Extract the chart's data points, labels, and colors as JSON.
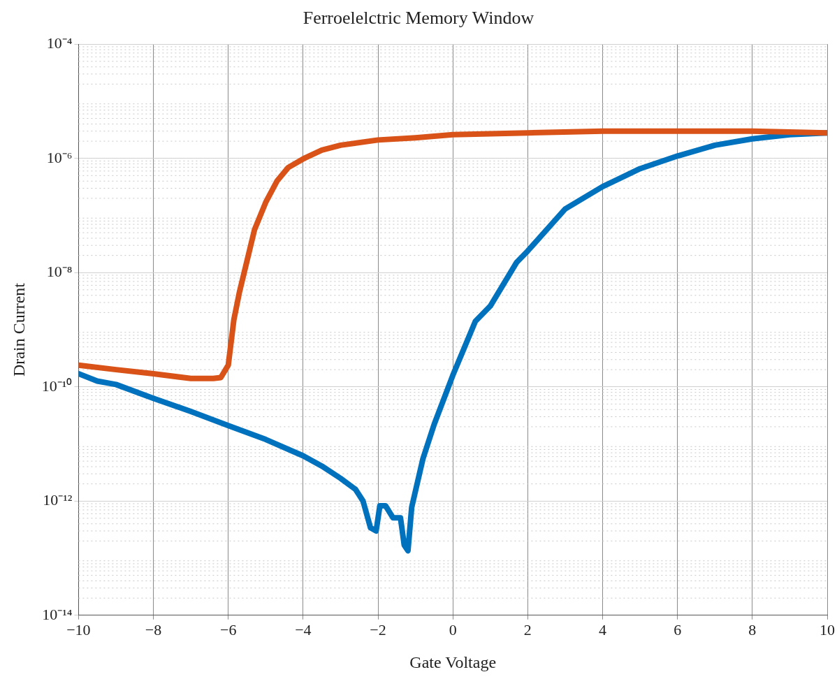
{
  "chart_data": {
    "type": "line",
    "title": "Ferroelelctric Memory Window",
    "xlabel": "Gate Voltage",
    "ylabel": "Drain Current",
    "log": "y",
    "grid": true,
    "legend": false,
    "marker": "none",
    "line_style": "solid",
    "xlim": [
      -10,
      10
    ],
    "ylim": [
      1e-14,
      0.0001
    ],
    "xticks": [
      {
        "value": -10,
        "label": "−10"
      },
      {
        "value": -8,
        "label": "−8"
      },
      {
        "value": -6,
        "label": "−6"
      },
      {
        "value": -4,
        "label": "−4"
      },
      {
        "value": -2,
        "label": "−2"
      },
      0,
      2,
      4,
      6,
      8,
      10
    ],
    "yticks": [
      {
        "value": 1e-14,
        "label": "10⁻¹⁴"
      },
      {
        "value": 1e-12,
        "label": "10⁻¹²"
      },
      {
        "value": 1e-10,
        "label": "10⁻¹⁰"
      },
      {
        "value": 1e-08,
        "label": "10⁻⁸"
      },
      {
        "value": 1e-06,
        "label": "10⁻⁶"
      },
      {
        "value": 0.0001,
        "label": "10⁻⁴"
      }
    ],
    "series": [
      {
        "color": "#d95319",
        "x": [
          -10,
          -9,
          -8,
          -7,
          -6.4,
          -6.2,
          -6,
          -5.85,
          -5.7,
          -5.5,
          -5.3,
          -5,
          -4.7,
          -4.4,
          -4,
          -3.5,
          -3,
          -2,
          -1,
          0,
          2,
          4,
          6,
          8,
          10
        ],
        "values": [
          2.4e-10,
          2e-10,
          1.7e-10,
          1.4e-10,
          1.4e-10,
          1.45e-10,
          2.4e-10,
          1.5e-09,
          4.6e-09,
          1.6e-08,
          5.6e-08,
          1.7e-07,
          4e-07,
          6.9e-07,
          9.8e-07,
          1.4e-06,
          1.7e-06,
          2.1e-06,
          2.3e-06,
          2.6e-06,
          2.8e-06,
          3e-06,
          3e-06,
          3e-06,
          2.8e-06
        ]
      },
      {
        "color": "#0072bd",
        "x": [
          -10,
          -9.5,
          -9,
          -8,
          -7,
          -6,
          -5,
          -4,
          -3.5,
          -3,
          -2.6,
          -2.4,
          -2.2,
          -2.05,
          -1.95,
          -1.8,
          -1.6,
          -1.4,
          -1.3,
          -1.2,
          -1.1,
          -0.8,
          -0.5,
          0,
          0.6,
          1,
          1.7,
          2,
          3,
          4,
          5,
          6,
          7,
          8,
          9,
          10
        ],
        "values": [
          1.7e-10,
          1.26e-10,
          1.1e-10,
          6.3e-11,
          3.7e-11,
          2.1e-11,
          1.2e-11,
          6.2e-12,
          4.1e-12,
          2.5e-12,
          1.6e-12,
          1e-12,
          3.4e-13,
          3e-13,
          8.3e-13,
          8.3e-13,
          5.1e-13,
          5.1e-13,
          1.7e-13,
          1.35e-13,
          7.8e-13,
          5.5e-12,
          2.2e-11,
          1.6e-10,
          1.4e-09,
          2.6e-09,
          1.5e-08,
          2.4e-08,
          1.3e-07,
          3.2e-07,
          6.6e-07,
          1.1e-06,
          1.7e-06,
          2.2e-06,
          2.6e-06,
          2.8e-06
        ]
      }
    ]
  }
}
